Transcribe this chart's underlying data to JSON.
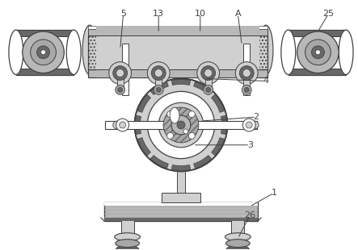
{
  "bg_color": "#ffffff",
  "line_color": "#404040",
  "gray_light": "#d0d0d0",
  "gray_med": "#a8a8a8",
  "gray_dark": "#686868",
  "gray_fill": "#b8b8b8",
  "gray_outer": "#c0c0c0",
  "figsize": [
    4.43,
    3.1
  ],
  "dpi": 100
}
